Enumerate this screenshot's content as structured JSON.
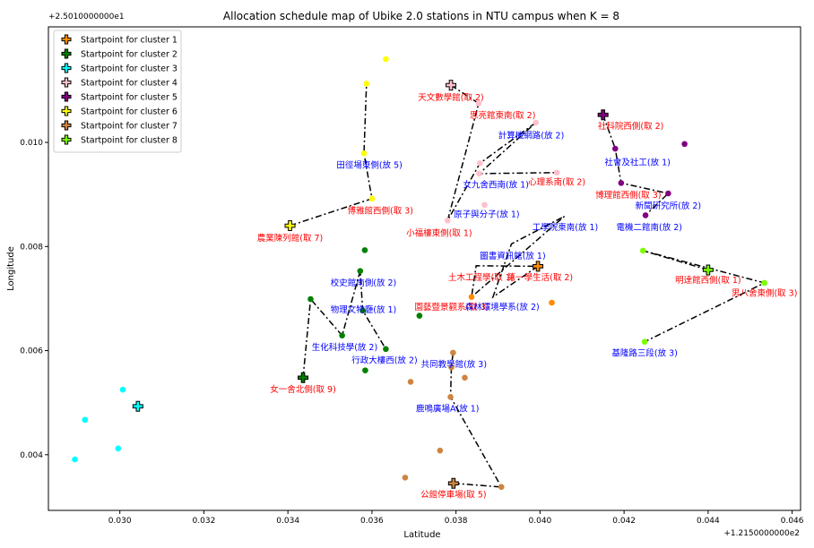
{
  "chart_data": {
    "type": "scatter",
    "title": "Allocation schedule map of Ubike 2.0 stations in NTU campus when K = 8",
    "xlabel": "Latitude",
    "ylabel": "Longitude",
    "x_offset_label": "+1.2150000000e2",
    "y_offset_label": "+2.5010000000e1",
    "xlim": [
      0.0283,
      0.0462
    ],
    "ylim": [
      0.00293,
      0.01222
    ],
    "x_ticks": [
      0.03,
      0.032,
      0.034,
      0.036,
      0.038,
      0.04,
      0.042,
      0.044,
      0.046
    ],
    "x_tick_labels": [
      "0.030",
      "0.032",
      "0.034",
      "0.036",
      "0.038",
      "0.040",
      "0.042",
      "0.044",
      "0.046"
    ],
    "y_ticks": [
      0.004,
      0.006,
      0.008,
      0.01
    ],
    "y_tick_labels": [
      "0.004",
      "0.006",
      "0.008",
      "0.010"
    ],
    "grid": false,
    "legend_position": "top-left",
    "series": [
      {
        "name": "Startpoint for cluster 1",
        "color": "#ff8c00",
        "start": [
          0.03995,
          0.00762
        ],
        "points": [
          [
            0.03995,
            0.00762
          ],
          [
            0.04028,
            0.00692
          ],
          [
            0.03837,
            0.00703
          ]
        ],
        "route": [
          [
            0.03995,
            0.00762
          ],
          [
            0.03888,
            0.00703
          ],
          [
            0.03932,
            0.00805
          ],
          [
            0.04058,
            0.00858
          ],
          [
            0.03837,
            0.00703
          ],
          [
            0.03848,
            0.00763
          ],
          [
            0.03995,
            0.00762
          ]
        ]
      },
      {
        "name": "Startpoint for cluster 2",
        "color": "#008000",
        "start": [
          0.03436,
          0.00548
        ],
        "points": [
          [
            0.03436,
            0.00548
          ],
          [
            0.03584,
            0.00562
          ],
          [
            0.03633,
            0.00603
          ],
          [
            0.03578,
            0.00677
          ],
          [
            0.03572,
            0.00753
          ],
          [
            0.03583,
            0.00793
          ],
          [
            0.03529,
            0.00629
          ],
          [
            0.03454,
            0.00699
          ],
          [
            0.03713,
            0.00667
          ]
        ],
        "route": [
          [
            0.03436,
            0.00548
          ],
          [
            0.03454,
            0.00699
          ],
          [
            0.03529,
            0.00629
          ],
          [
            0.03572,
            0.00753
          ],
          [
            0.03578,
            0.00677
          ],
          [
            0.03633,
            0.00603
          ]
        ]
      },
      {
        "name": "Startpoint for cluster 3",
        "color": "#00ffff",
        "start": [
          0.03043,
          0.00493
        ],
        "points": [
          [
            0.03043,
            0.00493
          ],
          [
            0.03007,
            0.00525
          ],
          [
            0.02917,
            0.00467
          ],
          [
            0.02996,
            0.00412
          ],
          [
            0.02893,
            0.00391
          ]
        ],
        "route": []
      },
      {
        "name": "Startpoint for cluster 4",
        "color": "#ffc0cb",
        "start": [
          0.03788,
          0.0111
        ],
        "points": [
          [
            0.03788,
            0.0111
          ],
          [
            0.03854,
            0.01075
          ],
          [
            0.0399,
            0.01038
          ],
          [
            0.03857,
            0.0096
          ],
          [
            0.0404,
            0.00942
          ],
          [
            0.03855,
            0.0094
          ],
          [
            0.0378,
            0.0085
          ],
          [
            0.03868,
            0.0088
          ]
        ],
        "route": [
          [
            0.03788,
            0.0111
          ],
          [
            0.03854,
            0.01075
          ],
          [
            0.0378,
            0.0085
          ],
          [
            0.03857,
            0.0096
          ],
          [
            0.0399,
            0.01038
          ],
          [
            0.03855,
            0.0094
          ],
          [
            0.0404,
            0.00942
          ]
        ]
      },
      {
        "name": "Startpoint for cluster 5",
        "color": "#800080",
        "start": [
          0.0415,
          0.01053
        ],
        "points": [
          [
            0.0415,
            0.01053
          ],
          [
            0.04179,
            0.00988
          ],
          [
            0.04193,
            0.00922
          ],
          [
            0.04305,
            0.00902
          ],
          [
            0.04251,
            0.0086
          ],
          [
            0.04344,
            0.00997
          ]
        ],
        "route": [
          [
            0.0415,
            0.01053
          ],
          [
            0.04179,
            0.00988
          ],
          [
            0.04193,
            0.00922
          ],
          [
            0.04305,
            0.00902
          ],
          [
            0.04251,
            0.0086
          ]
        ]
      },
      {
        "name": "Startpoint for cluster 6",
        "color": "#ffff00",
        "start": [
          0.03405,
          0.0084
        ],
        "points": [
          [
            0.03405,
            0.0084
          ],
          [
            0.03581,
            0.00979
          ],
          [
            0.03587,
            0.01113
          ],
          [
            0.03633,
            0.0116
          ],
          [
            0.036,
            0.00892
          ]
        ],
        "route": [
          [
            0.03405,
            0.0084
          ],
          [
            0.036,
            0.00892
          ],
          [
            0.03581,
            0.00979
          ],
          [
            0.03587,
            0.01113
          ]
        ]
      },
      {
        "name": "Startpoint for cluster 7",
        "color": "#cd853f",
        "start": [
          0.03794,
          0.00345
        ],
        "points": [
          [
            0.03794,
            0.00345
          ],
          [
            0.03908,
            0.00338
          ],
          [
            0.03787,
            0.00511
          ],
          [
            0.03789,
            0.00568
          ],
          [
            0.03793,
            0.00596
          ],
          [
            0.03821,
            0.00548
          ],
          [
            0.03692,
            0.0054
          ],
          [
            0.03762,
            0.00408
          ],
          [
            0.03679,
            0.00356
          ]
        ],
        "route": [
          [
            0.03794,
            0.00345
          ],
          [
            0.03908,
            0.00338
          ],
          [
            0.03787,
            0.00511
          ],
          [
            0.03789,
            0.00568
          ],
          [
            0.03793,
            0.00596
          ]
        ]
      },
      {
        "name": "Startpoint for cluster 8",
        "color": "#7cfc00",
        "start": [
          0.044,
          0.00755
        ],
        "points": [
          [
            0.044,
            0.00755
          ],
          [
            0.04245,
            0.00792
          ],
          [
            0.04534,
            0.0073
          ],
          [
            0.04249,
            0.00617
          ]
        ],
        "route": [
          [
            0.044,
            0.00755
          ],
          [
            0.04245,
            0.00792
          ],
          [
            0.04534,
            0.0073
          ],
          [
            0.04249,
            0.00617
          ]
        ]
      }
    ],
    "annotations": [
      {
        "text": "天文數學館(取 2)",
        "x": 0.03788,
        "y": 0.01088,
        "color": "red"
      },
      {
        "text": "思亮館東南(取 2)",
        "x": 0.03911,
        "y": 0.01053,
        "color": "red"
      },
      {
        "text": "社科院西側(取 2)",
        "x": 0.04216,
        "y": 0.01033,
        "color": "red"
      },
      {
        "text": "計算機網路(放 2)",
        "x": 0.03979,
        "y": 0.01015,
        "color": "blue"
      },
      {
        "text": "社會及社工(放 1)",
        "x": 0.04232,
        "y": 0.00963,
        "color": "blue"
      },
      {
        "text": "田徑場東側(放 5)",
        "x": 0.03594,
        "y": 0.00958,
        "color": "blue"
      },
      {
        "text": "心理系南(取 2)",
        "x": 0.0404,
        "y": 0.00925,
        "color": "red"
      },
      {
        "text": "女九舍西南(放 1)",
        "x": 0.03895,
        "y": 0.0092,
        "color": "blue"
      },
      {
        "text": "博理館西側(取 3)",
        "x": 0.0421,
        "y": 0.009,
        "color": "red"
      },
      {
        "text": "新聞研究所(放 2)",
        "x": 0.04305,
        "y": 0.0088,
        "color": "blue"
      },
      {
        "text": "博雅館西側(取 3)",
        "x": 0.0362,
        "y": 0.0087,
        "color": "red"
      },
      {
        "text": "原子與分子(放 1)",
        "x": 0.03873,
        "y": 0.00863,
        "color": "blue"
      },
      {
        "text": "工學院東南(放 1)",
        "x": 0.0406,
        "y": 0.00838,
        "color": "blue"
      },
      {
        "text": "電機二館南(放 2)",
        "x": 0.0426,
        "y": 0.00838,
        "color": "blue"
      },
      {
        "text": "小福樓東側(取 1)",
        "x": 0.0376,
        "y": 0.00827,
        "color": "red"
      },
      {
        "text": "農業陳列館(取 7)",
        "x": 0.03405,
        "y": 0.00818,
        "color": "red"
      },
      {
        "text": "圖書資訊館(放 1)",
        "x": 0.03935,
        "y": 0.00783,
        "color": "blue"
      },
      {
        "text": "土木工程學(取 1)",
        "x": 0.0386,
        "y": 0.00742,
        "color": "red"
      },
      {
        "text": "第一學生活(取 2)",
        "x": 0.04,
        "y": 0.00742,
        "color": "red"
      },
      {
        "text": "明達館西側(取 1)",
        "x": 0.044,
        "y": 0.00737,
        "color": "red"
      },
      {
        "text": "校史館南側(放 2)",
        "x": 0.0358,
        "y": 0.00732,
        "color": "blue"
      },
      {
        "text": "男八舍東側(取 3)",
        "x": 0.04534,
        "y": 0.00712,
        "color": "red"
      },
      {
        "text": "園藝暨景觀系(取 3)",
        "x": 0.0379,
        "y": 0.00685,
        "color": "red"
      },
      {
        "text": "森林環境學系(放 2)",
        "x": 0.0391,
        "y": 0.00685,
        "color": "blue"
      },
      {
        "text": "物理文物廳(放 1)",
        "x": 0.0358,
        "y": 0.0068,
        "color": "blue"
      },
      {
        "text": "生化科技學(放 2)",
        "x": 0.03535,
        "y": 0.00608,
        "color": "blue"
      },
      {
        "text": "基隆路三段(放 3)",
        "x": 0.04249,
        "y": 0.00597,
        "color": "blue"
      },
      {
        "text": "行政大樓西(放 2)",
        "x": 0.0363,
        "y": 0.00583,
        "color": "blue"
      },
      {
        "text": "共同教學館(放 3)",
        "x": 0.03795,
        "y": 0.00575,
        "color": "blue"
      },
      {
        "text": "女一舍北側(取 9)",
        "x": 0.03436,
        "y": 0.00527,
        "color": "red"
      },
      {
        "text": "鹿鳴廣場A(放 1)",
        "x": 0.0378,
        "y": 0.0049,
        "color": "blue"
      },
      {
        "text": "公館停車場(取 5)",
        "x": 0.03794,
        "y": 0.00325,
        "color": "red"
      }
    ]
  }
}
